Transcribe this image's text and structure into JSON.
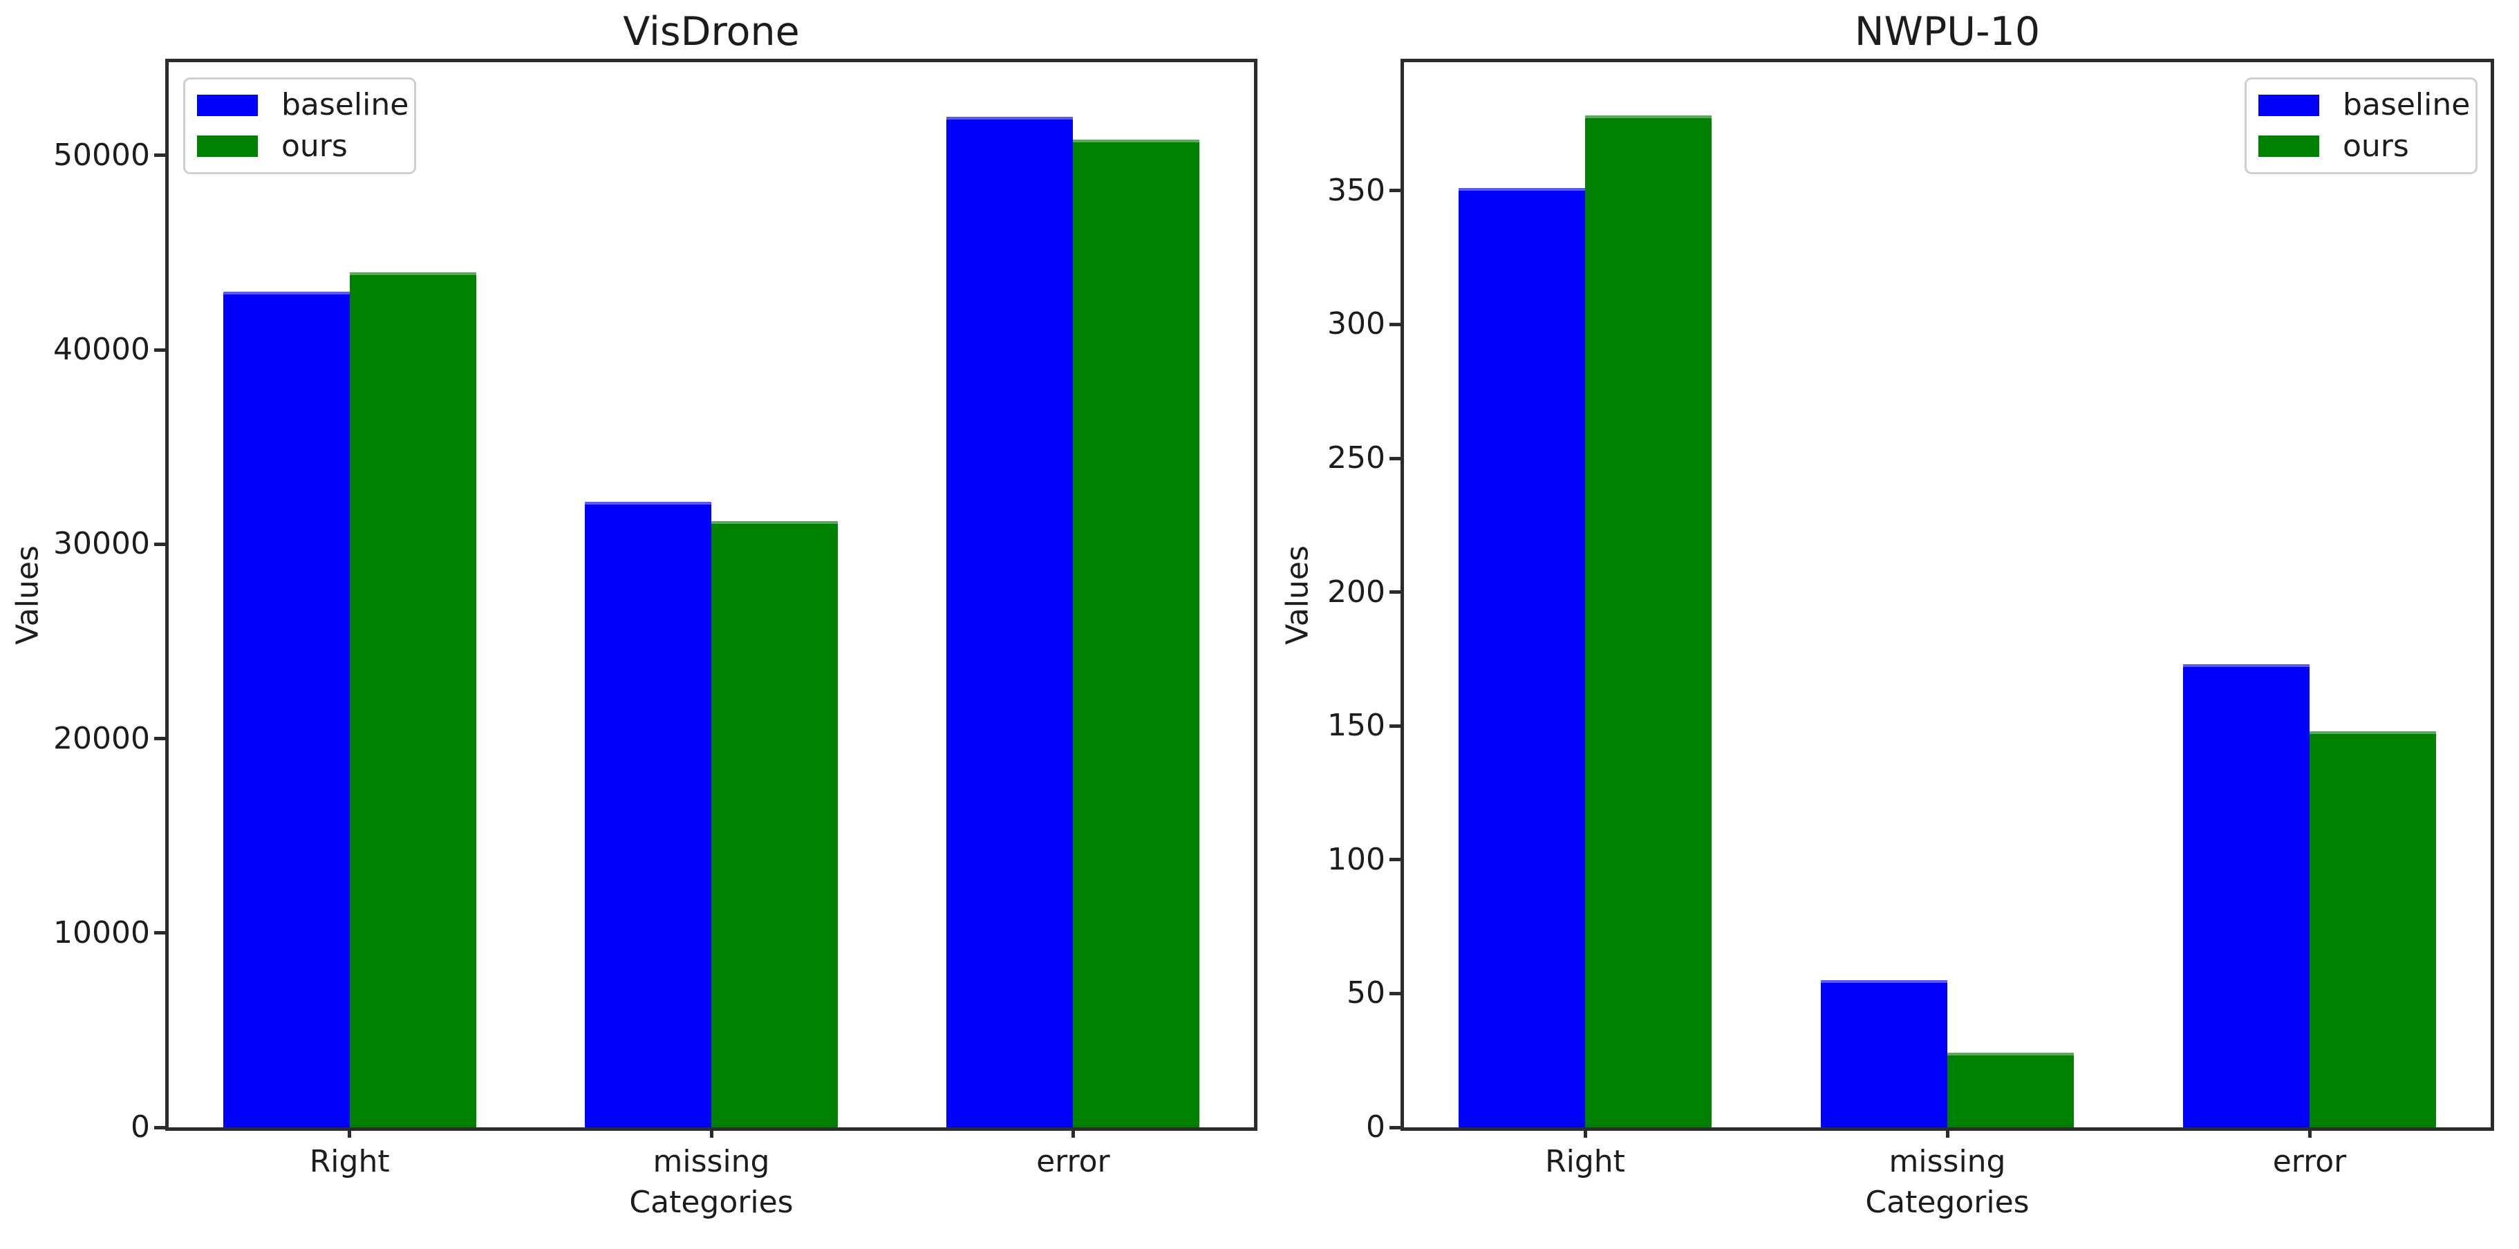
{
  "figure": {
    "background": "#ffffff",
    "text_color": "#1c1c1c",
    "spine_color": "#2b2b2b",
    "legend_border_color": "#cfcfcf"
  },
  "chart_data": [
    {
      "type": "bar",
      "title": "VisDrone",
      "xlabel": "Categories",
      "ylabel": "Values",
      "categories": [
        "Right",
        "missing",
        "error"
      ],
      "series": [
        {
          "name": "baseline",
          "color": "#0000ff",
          "values": [
            43000,
            32200,
            52000
          ]
        },
        {
          "name": "ours",
          "color": "#008000",
          "values": [
            44000,
            31200,
            50800
          ]
        }
      ],
      "ylim": [
        0,
        54800
      ],
      "yticks": [
        0,
        10000,
        20000,
        30000,
        40000,
        50000
      ],
      "ytick_labels": [
        "0",
        "10000",
        "20000",
        "30000",
        "40000",
        "50000"
      ],
      "bar_width_fraction": 0.35,
      "grid": "off",
      "legend_position": "upper-left",
      "legend_entries": [
        "baseline",
        "ours"
      ]
    },
    {
      "type": "bar",
      "title": "NWPU-10",
      "xlabel": "Categories",
      "ylabel": "Values",
      "categories": [
        "Right",
        "missing",
        "error"
      ],
      "series": [
        {
          "name": "baseline",
          "color": "#0000ff",
          "values": [
            351,
            55,
            173
          ]
        },
        {
          "name": "ours",
          "color": "#008000",
          "values": [
            378,
            28,
            148
          ]
        }
      ],
      "ylim": [
        0,
        398
      ],
      "yticks": [
        0,
        50,
        100,
        150,
        200,
        250,
        300,
        350
      ],
      "ytick_labels": [
        "0",
        "50",
        "100",
        "150",
        "200",
        "250",
        "300",
        "350"
      ],
      "bar_width_fraction": 0.35,
      "grid": "off",
      "legend_position": "upper-right",
      "legend_entries": [
        "baseline",
        "ours"
      ]
    }
  ]
}
